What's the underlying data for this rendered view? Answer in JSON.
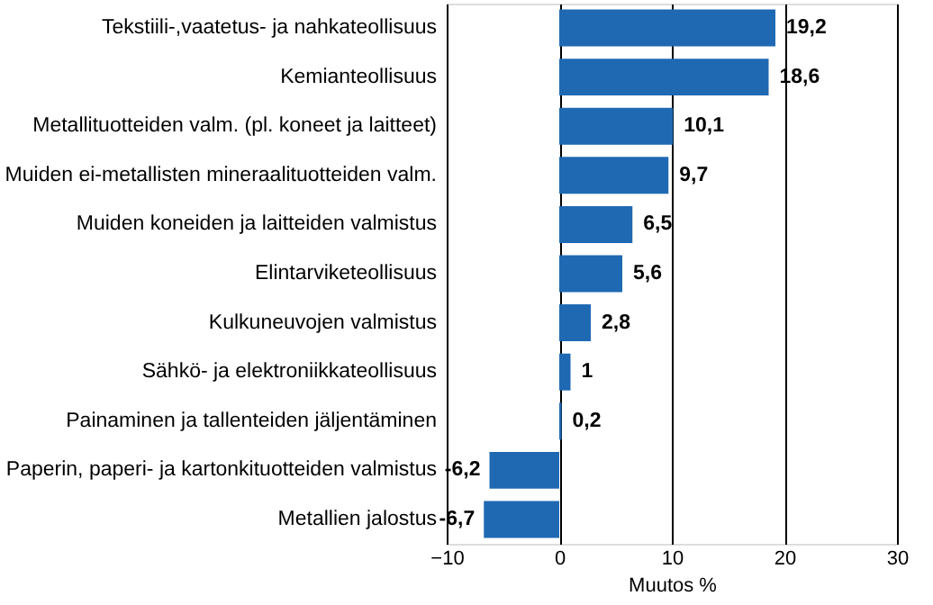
{
  "chart_data": {
    "type": "bar",
    "orientation": "horizontal",
    "xlabel": "Muutos  %",
    "categories": [
      "Tekstiili-,vaatetus- ja nahkateollisuus",
      "Kemianteollisuus",
      "Metallituotteiden valm. (pl. koneet ja laitteet)",
      "Muiden ei-metallisten mineraalituotteiden valm.",
      "Muiden koneiden ja laitteiden valmistus",
      "Elintarviketeollisuus",
      "Kulkuneuvojen valmistus",
      "Sähkö- ja elektroniikkateollisuus",
      "Painaminen ja tallenteiden jäljentäminen",
      "Paperin, paperi- ja kartonkituotteiden valmistus",
      "Metallien jalostus"
    ],
    "values": [
      19.2,
      18.6,
      10.1,
      9.7,
      6.5,
      5.6,
      2.8,
      1,
      0.2,
      -6.2,
      -6.7
    ],
    "value_labels": [
      "19,2",
      "18,6",
      "10,1",
      "9,7",
      "6,5",
      "5,6",
      "2,8",
      "1",
      "0,2",
      "-6,2",
      "-6,7"
    ],
    "color": "#1f69b3",
    "xlim": [
      -10,
      30
    ],
    "xticks": [
      -10,
      0,
      10,
      20,
      30
    ],
    "grid": "x"
  }
}
